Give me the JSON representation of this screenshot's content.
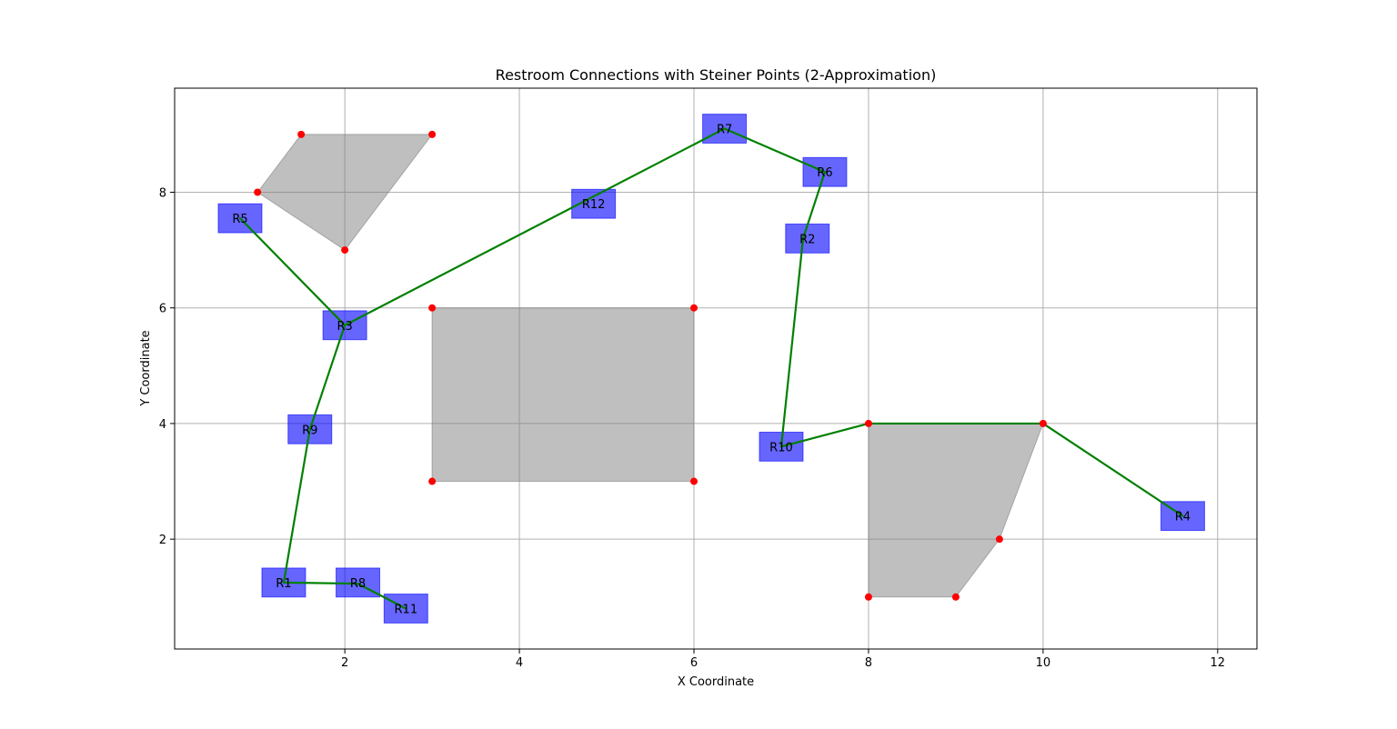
{
  "chart_data": {
    "type": "scatter",
    "title": "Restroom Connections with Steiner Points (2-Approximation)",
    "xlabel": "X Coordinate",
    "ylabel": "Y Coordinate",
    "xlim": [
      0.05,
      12.45
    ],
    "ylim": [
      0.1,
      9.8
    ],
    "xticks": [
      2,
      4,
      6,
      8,
      10,
      12
    ],
    "yticks": [
      2,
      4,
      6,
      8
    ],
    "grid": true,
    "colors": {
      "restroom": "#0000ff",
      "obstacle": "#808080",
      "vertex": "#ff0000",
      "edge": "#008000",
      "grid": "#b0b0b0"
    },
    "restrooms": [
      {
        "label": "R1",
        "x": 1.3,
        "y": 1.25
      },
      {
        "label": "R2",
        "x": 7.3,
        "y": 7.2
      },
      {
        "label": "R3",
        "x": 2.0,
        "y": 5.7
      },
      {
        "label": "R4",
        "x": 11.6,
        "y": 2.4
      },
      {
        "label": "R5",
        "x": 0.8,
        "y": 7.55
      },
      {
        "label": "R6",
        "x": 7.5,
        "y": 8.35
      },
      {
        "label": "R7",
        "x": 6.35,
        "y": 9.1
      },
      {
        "label": "R8",
        "x": 2.15,
        "y": 1.25
      },
      {
        "label": "R9",
        "x": 1.6,
        "y": 3.9
      },
      {
        "label": "R10",
        "x": 7.0,
        "y": 3.6
      },
      {
        "label": "R11",
        "x": 2.7,
        "y": 0.8
      },
      {
        "label": "R12",
        "x": 4.85,
        "y": 7.8
      }
    ],
    "obstacles": [
      {
        "vertices": [
          [
            1.0,
            8.0
          ],
          [
            1.5,
            9.0
          ],
          [
            3.0,
            9.0
          ],
          [
            2.0,
            7.0
          ]
        ]
      },
      {
        "vertices": [
          [
            3.0,
            3.0
          ],
          [
            6.0,
            3.0
          ],
          [
            6.0,
            6.0
          ],
          [
            3.0,
            6.0
          ]
        ]
      },
      {
        "vertices": [
          [
            8.0,
            1.0
          ],
          [
            9.0,
            1.0
          ],
          [
            9.5,
            2.0
          ],
          [
            10.0,
            4.0
          ],
          [
            8.0,
            4.0
          ]
        ]
      }
    ],
    "edges": [
      [
        [
          0.8,
          7.55
        ],
        [
          2.0,
          5.7
        ]
      ],
      [
        [
          2.0,
          5.7
        ],
        [
          1.6,
          3.9
        ]
      ],
      [
        [
          1.6,
          3.9
        ],
        [
          1.3,
          1.25
        ]
      ],
      [
        [
          1.3,
          1.25
        ],
        [
          2.15,
          1.23
        ]
      ],
      [
        [
          2.15,
          1.23
        ],
        [
          2.7,
          0.8
        ]
      ],
      [
        [
          2.0,
          5.7
        ],
        [
          6.35,
          9.1
        ]
      ],
      [
        [
          6.35,
          9.1
        ],
        [
          7.5,
          8.35
        ]
      ],
      [
        [
          7.5,
          8.35
        ],
        [
          7.25,
          7.2
        ]
      ],
      [
        [
          7.25,
          7.2
        ],
        [
          7.0,
          3.6
        ]
      ],
      [
        [
          7.0,
          3.6
        ],
        [
          8.0,
          4.0
        ]
      ],
      [
        [
          8.0,
          4.0
        ],
        [
          10.0,
          4.0
        ]
      ],
      [
        [
          10.0,
          4.0
        ],
        [
          11.6,
          2.4
        ]
      ]
    ]
  }
}
